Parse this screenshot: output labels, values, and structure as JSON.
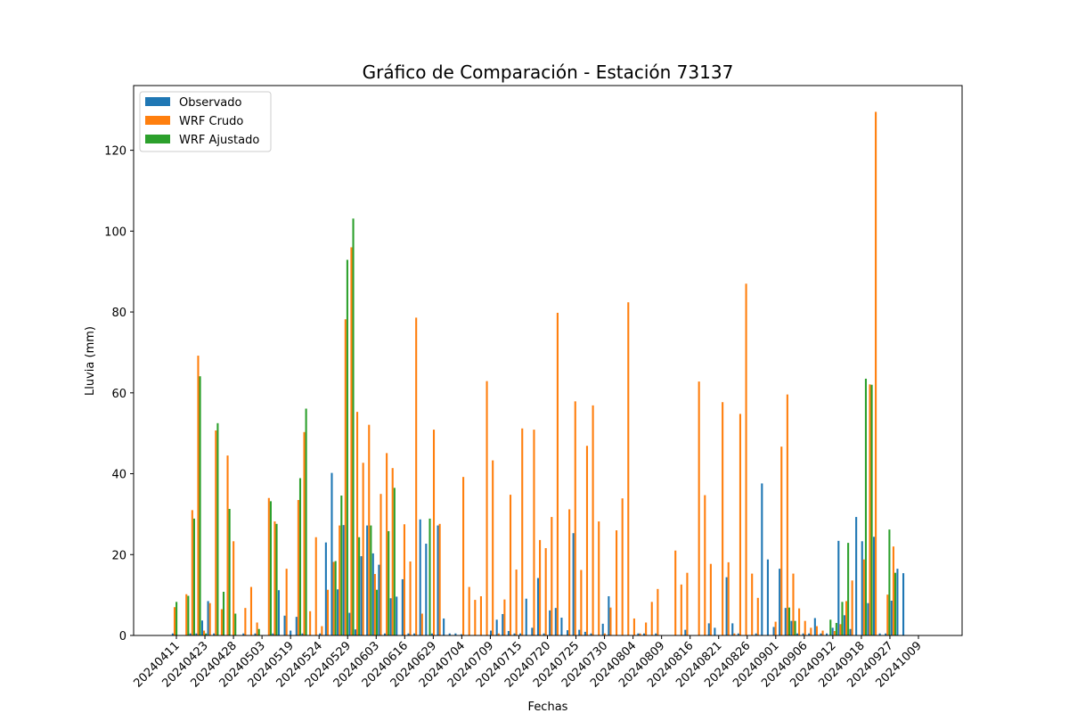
{
  "chart_data": {
    "type": "bar",
    "title": "Gráfico de Comparación - Estación 73137",
    "xlabel": "Fechas",
    "ylabel": "Lluvia (mm)",
    "ylim": [
      0,
      136
    ],
    "yticks": [
      0,
      20,
      40,
      60,
      80,
      100,
      120
    ],
    "legend_position": "top-left",
    "grid": false,
    "xtick_labels": [
      "20240411",
      "20240423",
      "20240428",
      "20240503",
      "20240519",
      "20240524",
      "20240529",
      "20240603",
      "20240616",
      "20240629",
      "20240704",
      "20240709",
      "20240715",
      "20240720",
      "20240725",
      "20240730",
      "20240804",
      "20240809",
      "20240816",
      "20240821",
      "20240826",
      "20240901",
      "20240906",
      "20240912",
      "20240918",
      "20240927",
      "20241009"
    ],
    "categories_count": 128,
    "series": [
      {
        "name": "Observado",
        "color": "#1f77b4",
        "values": [
          0.5,
          0,
          0,
          0.5,
          0.5,
          3.7,
          8.5,
          0.5,
          0,
          0,
          0,
          0,
          0.5,
          0,
          0.5,
          0,
          0,
          0.5,
          11.2,
          4.9,
          1.2,
          4.6,
          0.5,
          0,
          0,
          0.5,
          23,
          40.2,
          11.4,
          27.3,
          5.6,
          1.5,
          19.6,
          27.2,
          20.3,
          17.5,
          0.5,
          9.2,
          9.6,
          13.9,
          0.5,
          0.5,
          28.7,
          22.7,
          0.5,
          27.2,
          4.2,
          0.5,
          0.5,
          0.3,
          0,
          0,
          0,
          0,
          1.2,
          3.9,
          5.3,
          1.1,
          0.5,
          0.5,
          9.1,
          1.9,
          14.2,
          0.5,
          6.2,
          6.8,
          4.4,
          1.3,
          25.3,
          1.4,
          0.9,
          0.5,
          0,
          2.9,
          9.7,
          0,
          0,
          0,
          0,
          0.5,
          0.5,
          0,
          0.5,
          0,
          0,
          0,
          0,
          1.4,
          0,
          0,
          0,
          3,
          1.9,
          0,
          14.4,
          3,
          0.5,
          0,
          0,
          0.5,
          37.6,
          18.8,
          2.1,
          16.5,
          6.8,
          3.6,
          0.5,
          0.5,
          0.5,
          4.3,
          0.5,
          0.5,
          1.9,
          23.4,
          5,
          1.6,
          29.3,
          23.3,
          8,
          24.4,
          0.5,
          0.5,
          8.6,
          16.5,
          15.4,
          0,
          0,
          0
        ]
      },
      {
        "name": "WRF Crudo",
        "color": "#ff7f0e",
        "values": [
          7,
          0,
          10.2,
          31,
          69.2,
          1.2,
          8,
          50.7,
          6.5,
          44.5,
          23.3,
          0,
          6.8,
          12,
          3.2,
          0,
          34,
          28.2,
          0,
          16.5,
          0,
          33.5,
          50.3,
          6,
          24.3,
          2.3,
          11.3,
          18.2,
          27.2,
          78.2,
          96,
          55.3,
          42.7,
          52.1,
          15.2,
          35,
          45.1,
          41.4,
          0,
          27.5,
          18.3,
          78.6,
          5.4,
          0,
          50.9,
          27.6,
          0,
          0,
          0,
          39.2,
          12,
          8.8,
          9.7,
          62.9,
          43.3,
          0.5,
          8.9,
          34.8,
          16.3,
          51.2,
          0,
          50.9,
          23.6,
          21.6,
          29.3,
          79.8,
          0,
          31.2,
          57.9,
          16.2,
          46.9,
          56.9,
          28.2,
          0.5,
          6.9,
          26,
          33.9,
          82.4,
          4.2,
          0.5,
          3.2,
          8.3,
          11.5,
          0,
          0,
          21,
          12.6,
          15.5,
          0,
          62.8,
          34.7,
          17.7,
          0,
          57.7,
          18.1,
          0.5,
          54.8,
          87,
          15.3,
          9.3,
          0,
          0,
          3.4,
          46.7,
          59.6,
          15.3,
          6.7,
          3.6,
          1.9,
          2.3,
          1.2,
          0,
          1.1,
          2.8,
          8.5,
          13.6,
          0,
          18.8,
          62.1,
          129.5,
          0,
          10.1,
          22,
          0,
          0,
          0,
          0,
          0
        ]
      },
      {
        "name": "WRF Ajustado",
        "color": "#2ca02c",
        "values": [
          8.3,
          0,
          9.8,
          28.9,
          64.1,
          0.5,
          0,
          52.5,
          10.8,
          31.3,
          5.4,
          0,
          0,
          0,
          1.6,
          0,
          33.2,
          27.6,
          0,
          0,
          0,
          38.9,
          56.1,
          0,
          0,
          0,
          0,
          18.4,
          34.6,
          92.9,
          103.1,
          24.3,
          0,
          27.2,
          11.3,
          0,
          25.8,
          36.5,
          0,
          0,
          0,
          0,
          0,
          28.9,
          0,
          0,
          0,
          0,
          0,
          0,
          0,
          0,
          0,
          0,
          0,
          0,
          0,
          0,
          0,
          0,
          0,
          0,
          0,
          0,
          0,
          0,
          0,
          0,
          0,
          0,
          0,
          0,
          0,
          0,
          0,
          0,
          0,
          0,
          0,
          0,
          0,
          0,
          0,
          0,
          0,
          0,
          0,
          0,
          0,
          0,
          0,
          0,
          0,
          0,
          0,
          0,
          0,
          0,
          0,
          0,
          0,
          0,
          0,
          0,
          6.9,
          3.6,
          0,
          0,
          0,
          0,
          0,
          3.9,
          3.1,
          8.3,
          22.9,
          0,
          0,
          63.5,
          62,
          0,
          0,
          26.2,
          15.5,
          0,
          0,
          0,
          0,
          0
        ]
      }
    ]
  }
}
